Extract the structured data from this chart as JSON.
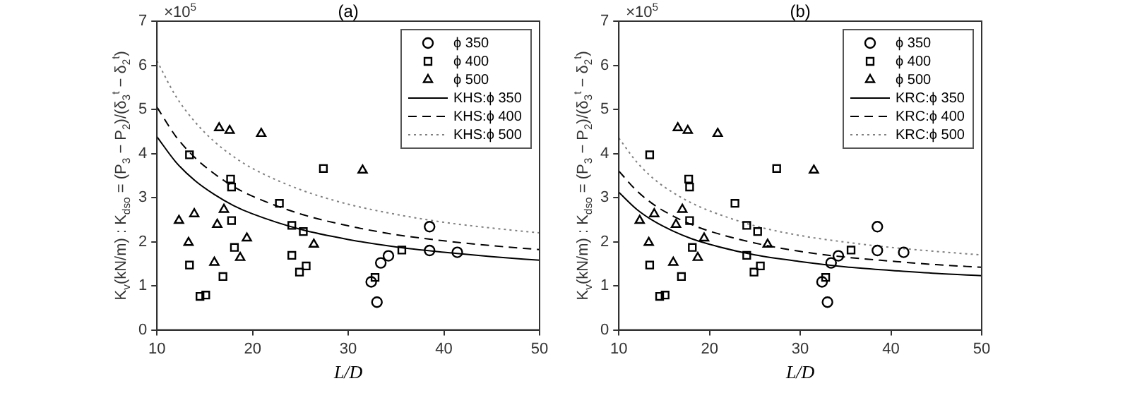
{
  "chart_data": [
    {
      "type": "scatter",
      "title": "(a)",
      "xlabel": "L/D",
      "ylabel": "K$_{v}$(kN/m) : K$_{dso}$ = (P$_{3}$ − P$_{2}$)/(δ$_{3}$$^{t}$ − δ$_{2}$$^{t}$)",
      "annotations": [
        "×10$^{5}$"
      ],
      "xlim": [
        10,
        50
      ],
      "ylim": [
        0,
        7
      ],
      "xticks": [
        10,
        20,
        30,
        40,
        50
      ],
      "yticks": [
        0,
        1,
        2,
        3,
        4,
        5,
        6,
        7
      ],
      "grid": false,
      "legend": "top right",
      "series": [
        {
          "name": "ϕ 350",
          "type": "scatter",
          "marker": "circle",
          "color": "#000000",
          "x": [
            32.4,
            33.0,
            33.4,
            34.2,
            38.5,
            38.5,
            41.4
          ],
          "values": [
            1.09,
            0.63,
            1.52,
            1.68,
            2.34,
            1.8,
            1.76
          ]
        },
        {
          "name": "ϕ 400",
          "type": "scatter",
          "marker": "square",
          "color": "#000000",
          "x": [
            13.4,
            13.4,
            14.5,
            15.1,
            16.9,
            17.7,
            17.8,
            17.8,
            18.1,
            22.8,
            24.1,
            24.1,
            25.3,
            24.9,
            25.6,
            27.4,
            32.8,
            35.6
          ],
          "values": [
            3.97,
            1.47,
            0.76,
            0.79,
            1.21,
            3.42,
            3.24,
            2.48,
            1.87,
            2.87,
            2.37,
            1.69,
            2.23,
            1.31,
            1.45,
            3.66,
            1.19,
            1.81
          ]
        },
        {
          "name": "ϕ 500",
          "type": "scatter",
          "marker": "triangle",
          "color": "#000000",
          "x": [
            12.3,
            13.3,
            13.9,
            16.0,
            16.3,
            16.5,
            17.6,
            17.0,
            18.7,
            19.4,
            20.9,
            26.4,
            31.5
          ],
          "values": [
            2.48,
            1.98,
            2.63,
            1.53,
            2.39,
            4.58,
            4.52,
            2.73,
            1.64,
            2.08,
            4.45,
            1.94,
            3.62
          ]
        },
        {
          "name": "KHS:ϕ 350",
          "type": "line",
          "marker": "none",
          "line_style": "solid",
          "color": "#000000",
          "x": [
            10,
            12,
            14,
            16,
            18,
            20,
            25,
            30,
            35,
            40,
            45,
            50
          ],
          "values": [
            4.38,
            3.8,
            3.38,
            3.07,
            2.82,
            2.63,
            2.28,
            2.05,
            1.88,
            1.76,
            1.66,
            1.58
          ]
        },
        {
          "name": "KHS:ϕ 400",
          "type": "line",
          "marker": "none",
          "line_style": "dashed",
          "color": "#000000",
          "x": [
            10,
            12,
            14,
            16,
            18,
            20,
            25,
            30,
            35,
            40,
            45,
            50
          ],
          "values": [
            5.05,
            4.38,
            3.9,
            3.54,
            3.25,
            3.03,
            2.63,
            2.36,
            2.16,
            2.02,
            1.91,
            1.82
          ]
        },
        {
          "name": "KHS:ϕ 500",
          "type": "line",
          "marker": "none",
          "line_style": "dotted",
          "color": "#808080",
          "x": [
            10,
            12,
            14,
            16,
            18,
            20,
            25,
            30,
            35,
            40,
            45,
            50
          ],
          "values": [
            6.1,
            5.29,
            4.71,
            4.27,
            3.93,
            3.66,
            3.18,
            2.85,
            2.62,
            2.44,
            2.31,
            2.2
          ]
        }
      ]
    },
    {
      "type": "scatter",
      "title": "(b)",
      "xlabel": "L/D",
      "ylabel": "K$_{v}$(kN/m) : K$_{dso}$ = (P$_{3}$ − P$_{2}$)/(δ$_{3}$$^{t}$ − δ$_{2}$$^{t}$)",
      "annotations": [
        "×10$^{5}$"
      ],
      "xlim": [
        10,
        50
      ],
      "ylim": [
        0,
        7
      ],
      "xticks": [
        10,
        20,
        30,
        40,
        50
      ],
      "yticks": [
        0,
        1,
        2,
        3,
        4,
        5,
        6,
        7
      ],
      "grid": false,
      "legend": "top right",
      "series": [
        {
          "name": "ϕ 350",
          "type": "scatter",
          "marker": "circle",
          "color": "#000000",
          "x": [
            32.4,
            33.0,
            33.4,
            34.2,
            38.5,
            38.5,
            41.4
          ],
          "values": [
            1.09,
            0.63,
            1.52,
            1.68,
            2.34,
            1.8,
            1.76
          ]
        },
        {
          "name": "ϕ 400",
          "type": "scatter",
          "marker": "square",
          "color": "#000000",
          "x": [
            13.4,
            13.4,
            14.5,
            15.1,
            16.9,
            17.7,
            17.8,
            17.8,
            18.1,
            22.8,
            24.1,
            24.1,
            25.3,
            24.9,
            25.6,
            27.4,
            32.8,
            35.6
          ],
          "values": [
            3.97,
            1.47,
            0.76,
            0.79,
            1.21,
            3.42,
            3.24,
            2.48,
            1.87,
            2.87,
            2.37,
            1.69,
            2.23,
            1.31,
            1.45,
            3.66,
            1.19,
            1.81
          ]
        },
        {
          "name": "ϕ 500",
          "type": "scatter",
          "marker": "triangle",
          "color": "#000000",
          "x": [
            12.3,
            13.3,
            13.9,
            16.0,
            16.3,
            16.5,
            17.6,
            17.0,
            18.7,
            19.4,
            20.9,
            26.4,
            31.5
          ],
          "values": [
            2.48,
            1.98,
            2.63,
            1.53,
            2.39,
            4.58,
            4.52,
            2.73,
            1.64,
            2.08,
            4.45,
            1.94,
            3.62
          ]
        },
        {
          "name": "KRC:ϕ 350",
          "type": "line",
          "marker": "none",
          "line_style": "solid",
          "color": "#000000",
          "x": [
            10,
            12,
            14,
            16,
            18,
            20,
            25,
            30,
            35,
            40,
            45,
            50
          ],
          "values": [
            3.12,
            2.73,
            2.45,
            2.24,
            2.07,
            1.94,
            1.7,
            1.55,
            1.43,
            1.35,
            1.28,
            1.23
          ]
        },
        {
          "name": "KRC:ϕ 400",
          "type": "line",
          "marker": "none",
          "line_style": "dashed",
          "color": "#000000",
          "x": [
            10,
            12,
            14,
            16,
            18,
            20,
            25,
            30,
            35,
            40,
            45,
            50
          ],
          "values": [
            3.6,
            3.15,
            2.82,
            2.58,
            2.39,
            2.24,
            1.97,
            1.78,
            1.65,
            1.56,
            1.48,
            1.42
          ]
        },
        {
          "name": "KRC:ϕ 500",
          "type": "line",
          "marker": "none",
          "line_style": "dotted",
          "color": "#808080",
          "x": [
            10,
            12,
            14,
            16,
            18,
            20,
            25,
            30,
            35,
            40,
            45,
            50
          ],
          "values": [
            4.35,
            3.8,
            3.4,
            3.11,
            2.88,
            2.7,
            2.36,
            2.14,
            1.99,
            1.87,
            1.78,
            1.7
          ]
        }
      ]
    }
  ]
}
